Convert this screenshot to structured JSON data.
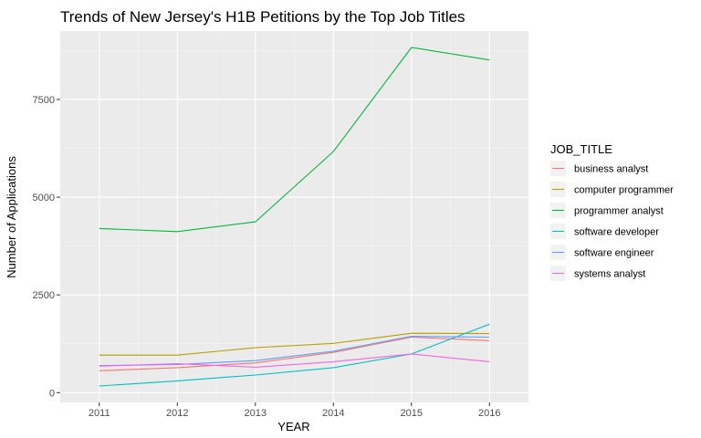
{
  "chart_data": {
    "type": "line",
    "title": "Trends of New Jersey's H1B Petitions by the Top Job Titles",
    "xlabel": "YEAR",
    "ylabel": "Number of Applications",
    "x": [
      2011,
      2012,
      2013,
      2014,
      2015,
      2016
    ],
    "x_ticks": [
      "2011",
      "2012",
      "2013",
      "2014",
      "2015",
      "2016"
    ],
    "xlim": [
      2010.5,
      2016.5
    ],
    "y_ticks": [
      0,
      2500,
      5000,
      7500
    ],
    "y_tick_labels": [
      "0",
      "2500",
      "5000",
      "7500"
    ],
    "ylim": [
      -250,
      9250
    ],
    "grid": true,
    "legend_title": "JOB_TITLE",
    "legend_position": "right",
    "series": [
      {
        "name": "business analyst",
        "color": "#F8766D",
        "values": [
          560,
          640,
          760,
          1030,
          1420,
          1330
        ]
      },
      {
        "name": "computer programmer",
        "color": "#B79F00",
        "values": [
          960,
          960,
          1150,
          1260,
          1520,
          1510
        ]
      },
      {
        "name": "programmer analyst",
        "color": "#00BA38",
        "values": [
          4200,
          4120,
          4370,
          6170,
          8830,
          8510
        ]
      },
      {
        "name": "software developer",
        "color": "#00BFC4",
        "values": [
          170,
          300,
          450,
          640,
          990,
          1750
        ]
      },
      {
        "name": "software engineer",
        "color": "#619CFF",
        "values": [
          690,
          720,
          820,
          1060,
          1440,
          1420
        ]
      },
      {
        "name": "systems analyst",
        "color": "#F564E3",
        "values": [
          680,
          740,
          650,
          790,
          990,
          790
        ]
      }
    ]
  }
}
